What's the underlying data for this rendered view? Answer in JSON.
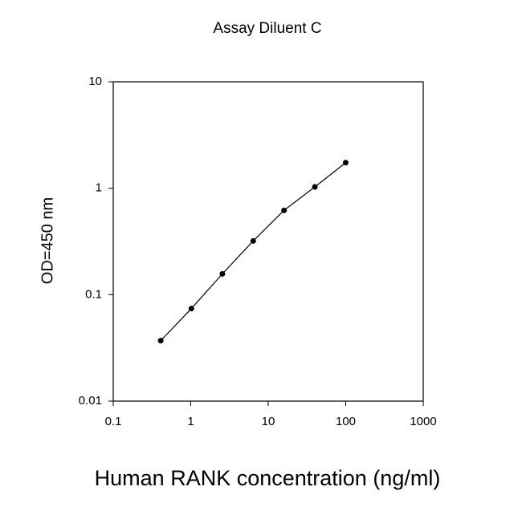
{
  "chart_data": {
    "type": "line",
    "title": "Assay Diluent C",
    "x_label": "Human RANK concentration (ng/ml)",
    "y_label": "OD=450 nm",
    "x": [
      0.41,
      1.02,
      2.56,
      6.4,
      16,
      40,
      100
    ],
    "series": [
      {
        "color": "#000000",
        "values": [
          0.037,
          0.074,
          0.157,
          0.32,
          0.62,
          1.03,
          1.74
        ]
      }
    ],
    "xlim": [
      0.1,
      1000
    ],
    "xticks": [
      0.1,
      1,
      10,
      100,
      1000
    ],
    "ylim": [
      0.01,
      10
    ],
    "yticks": [
      0.01,
      0.1,
      1,
      10
    ],
    "x_log": true,
    "y_log": true,
    "grid": false
  }
}
